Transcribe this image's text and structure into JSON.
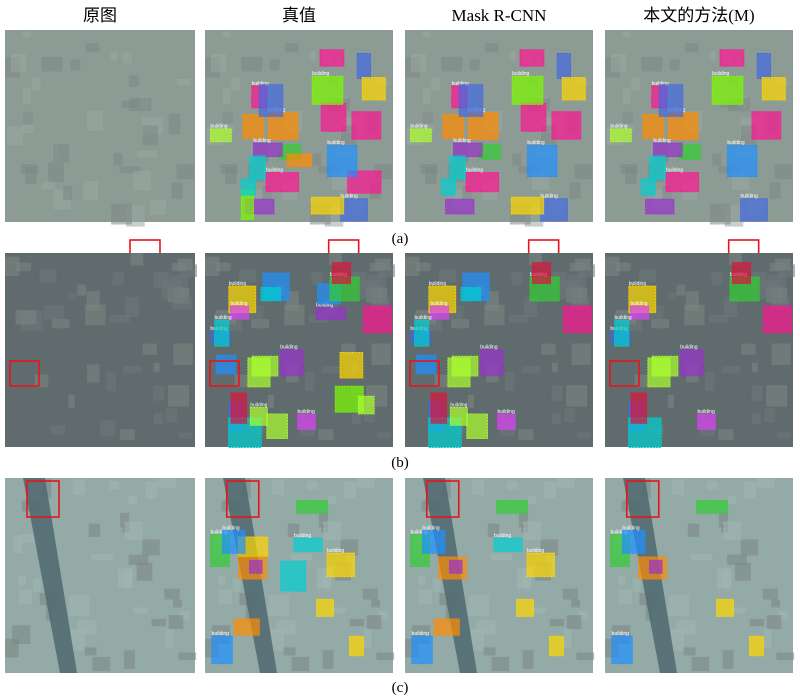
{
  "columns": [
    "原图",
    "真值",
    "Mask R-CNN",
    "本文的方法(M)"
  ],
  "rows": [
    {
      "caption": "(a)"
    },
    {
      "caption": "(b)"
    },
    {
      "caption": "(c)"
    }
  ],
  "instance_label": "building"
}
